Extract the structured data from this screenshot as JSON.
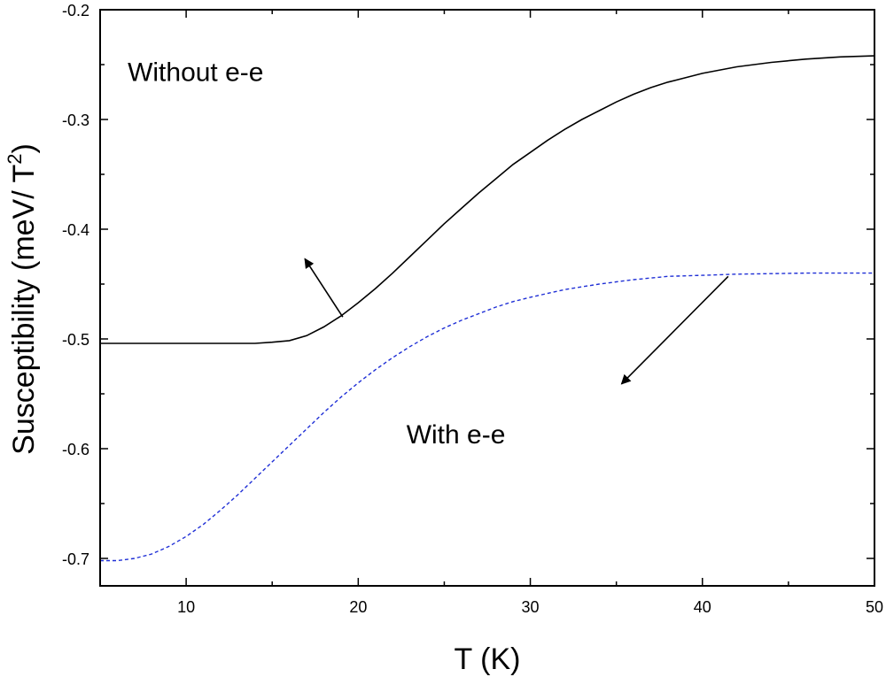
{
  "chart_data": {
    "type": "line",
    "xlabel": "T (K)",
    "ylabel": "Susceptibility (meV/ T",
    "ylabel_sup": "2",
    "ylabel_suffix": ")",
    "xlim": [
      5,
      50
    ],
    "ylim": [
      -0.725,
      -0.2
    ],
    "xticks": [
      10,
      20,
      30,
      40,
      50
    ],
    "yticks": [
      -0.7,
      -0.6,
      -0.5,
      -0.4,
      -0.3,
      -0.2
    ],
    "x_minor_step": 5,
    "y_minor_step": 0.05,
    "grid": false,
    "series": [
      {
        "color": "#000000",
        "dash": "solid",
        "points": [
          [
            5,
            -0.504
          ],
          [
            8,
            -0.504
          ],
          [
            10,
            -0.504
          ],
          [
            12,
            -0.504
          ],
          [
            14,
            -0.504
          ],
          [
            15,
            -0.503
          ],
          [
            16,
            -0.5015
          ],
          [
            17,
            -0.497
          ],
          [
            18,
            -0.489
          ],
          [
            19,
            -0.479
          ],
          [
            20,
            -0.467
          ],
          [
            21,
            -0.454
          ],
          [
            22,
            -0.44
          ],
          [
            23,
            -0.425
          ],
          [
            24,
            -0.41
          ],
          [
            25,
            -0.395
          ],
          [
            26,
            -0.381
          ],
          [
            27,
            -0.367
          ],
          [
            28,
            -0.354
          ],
          [
            29,
            -0.341
          ],
          [
            30,
            -0.33
          ],
          [
            31,
            -0.319
          ],
          [
            32,
            -0.309
          ],
          [
            33,
            -0.3
          ],
          [
            34,
            -0.292
          ],
          [
            35,
            -0.284
          ],
          [
            36,
            -0.277
          ],
          [
            37,
            -0.271
          ],
          [
            38,
            -0.266
          ],
          [
            39,
            -0.262
          ],
          [
            40,
            -0.258
          ],
          [
            42,
            -0.252
          ],
          [
            44,
            -0.248
          ],
          [
            46,
            -0.245
          ],
          [
            48,
            -0.243
          ],
          [
            50,
            -0.242
          ]
        ]
      },
      {
        "color": "#1f2fd6",
        "dash": "dashed",
        "points": [
          [
            5,
            -0.702
          ],
          [
            6,
            -0.702
          ],
          [
            7,
            -0.7
          ],
          [
            8,
            -0.696
          ],
          [
            9,
            -0.689
          ],
          [
            10,
            -0.68
          ],
          [
            11,
            -0.669
          ],
          [
            12,
            -0.656
          ],
          [
            13,
            -0.642
          ],
          [
            14,
            -0.627
          ],
          [
            15,
            -0.612
          ],
          [
            16,
            -0.597
          ],
          [
            17,
            -0.582
          ],
          [
            18,
            -0.567
          ],
          [
            19,
            -0.553
          ],
          [
            20,
            -0.54
          ],
          [
            21,
            -0.528
          ],
          [
            22,
            -0.517
          ],
          [
            23,
            -0.507
          ],
          [
            24,
            -0.498
          ],
          [
            25,
            -0.49
          ],
          [
            26,
            -0.483
          ],
          [
            27,
            -0.477
          ],
          [
            28,
            -0.471
          ],
          [
            29,
            -0.466
          ],
          [
            30,
            -0.462
          ],
          [
            32,
            -0.455
          ],
          [
            34,
            -0.45
          ],
          [
            36,
            -0.446
          ],
          [
            38,
            -0.443
          ],
          [
            40,
            -0.442
          ],
          [
            42,
            -0.441
          ],
          [
            44,
            -0.4405
          ],
          [
            46,
            -0.44
          ],
          [
            48,
            -0.44
          ],
          [
            50,
            -0.44
          ]
        ]
      }
    ],
    "annotations": [
      {
        "text": "Without e-e",
        "x": 6.6,
        "y": -0.265,
        "arrow_from": [
          19.1,
          -0.48
        ],
        "arrow_to": [
          16.9,
          -0.427
        ]
      },
      {
        "text": "With e-e",
        "x": 22.8,
        "y": -0.595,
        "arrow_from": [
          41.5,
          -0.443
        ],
        "arrow_to": [
          35.3,
          -0.541
        ]
      }
    ]
  }
}
